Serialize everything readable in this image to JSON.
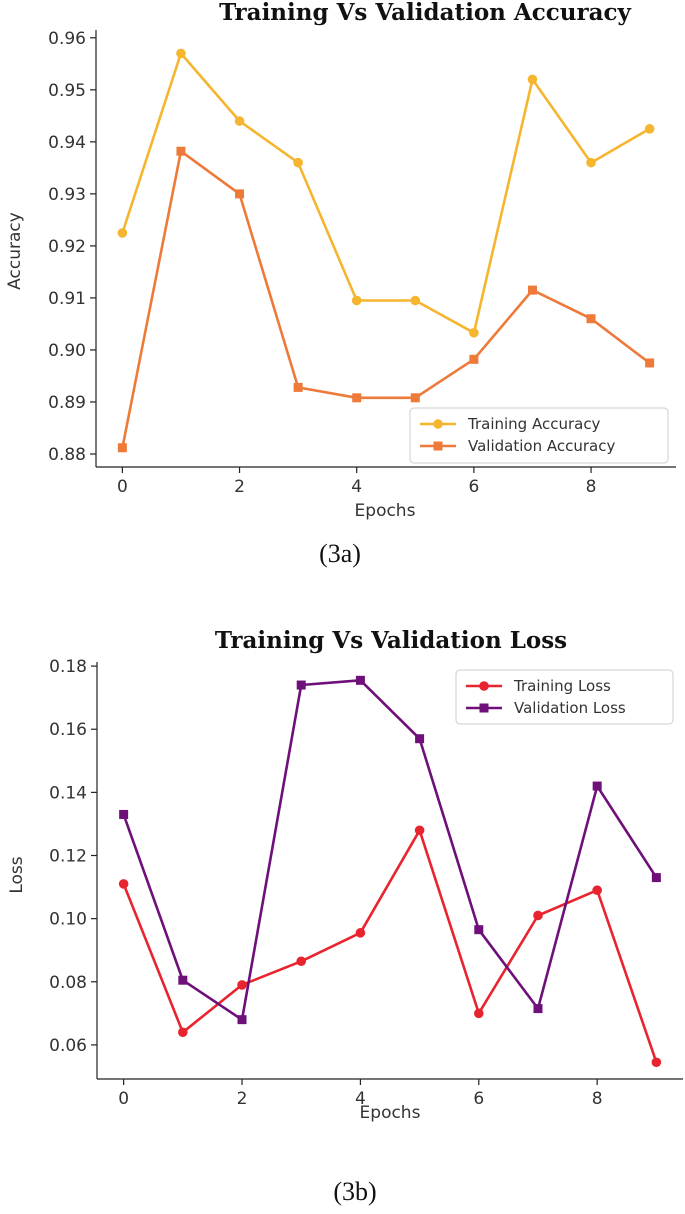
{
  "charts": [
    {
      "caption": "(3a)",
      "chart_data": {
        "type": "line",
        "title": "Training Vs Validation Accuracy",
        "xlabel": "Epochs",
        "ylabel": "Accuracy",
        "x": [
          0,
          1,
          2,
          3,
          4,
          5,
          6,
          7,
          8,
          9
        ],
        "xlim": [
          -0.45,
          9.45
        ],
        "ylim": [
          0.8775,
          0.9615
        ],
        "xticks": [
          0,
          2,
          4,
          6,
          8
        ],
        "xtick_labels": [
          "0",
          "2",
          "4",
          "6",
          "8"
        ],
        "yticks": [
          0.88,
          0.89,
          0.9,
          0.91,
          0.92,
          0.93,
          0.94,
          0.95,
          0.96
        ],
        "ytick_labels": [
          "0.88",
          "0.89",
          "0.90",
          "0.91",
          "0.92",
          "0.93",
          "0.94",
          "0.95",
          "0.96"
        ],
        "legend_position": "lower-right",
        "grid": false,
        "series": [
          {
            "name": "Training Accuracy",
            "color": "#F5B52E",
            "marker": "circle",
            "values": [
              0.9225,
              0.957,
              0.944,
              0.936,
              0.9095,
              0.9095,
              0.9033,
              0.952,
              0.936,
              0.9425
            ]
          },
          {
            "name": "Validation Accuracy",
            "color": "#EE7A3A",
            "marker": "square",
            "values": [
              0.8812,
              0.9382,
              0.93,
              0.8928,
              0.8908,
              0.8908,
              0.8982,
              0.9115,
              0.906,
              0.8975
            ]
          }
        ]
      }
    },
    {
      "caption": "(3b)",
      "chart_data": {
        "type": "line",
        "title": "Training Vs Validation Loss",
        "xlabel": "Epochs",
        "ylabel": "Loss",
        "x": [
          0,
          1,
          2,
          3,
          4,
          5,
          6,
          7,
          8,
          9
        ],
        "xlim": [
          -0.45,
          9.45
        ],
        "ylim": [
          0.0492,
          0.1813
        ],
        "xticks": [
          0,
          2,
          4,
          6,
          8
        ],
        "xtick_labels": [
          "0",
          "2",
          "4",
          "6",
          "8"
        ],
        "yticks": [
          0.06,
          0.08,
          0.1,
          0.12,
          0.14,
          0.16,
          0.18
        ],
        "ytick_labels": [
          "0.06",
          "0.08",
          "0.10",
          "0.12",
          "0.14",
          "0.16",
          "0.18"
        ],
        "legend_position": "top-right",
        "grid": false,
        "series": [
          {
            "name": "Training Loss",
            "color": "#E8242F",
            "marker": "circle",
            "values": [
              0.111,
              0.064,
              0.079,
              0.0865,
              0.0955,
              0.128,
              0.07,
              0.101,
              0.109,
              0.0545
            ]
          },
          {
            "name": "Validation Loss",
            "color": "#6E0F7A",
            "marker": "square",
            "values": [
              0.133,
              0.0805,
              0.068,
              0.174,
              0.1755,
              0.157,
              0.0965,
              0.0715,
              0.142,
              0.113
            ]
          }
        ]
      }
    }
  ]
}
